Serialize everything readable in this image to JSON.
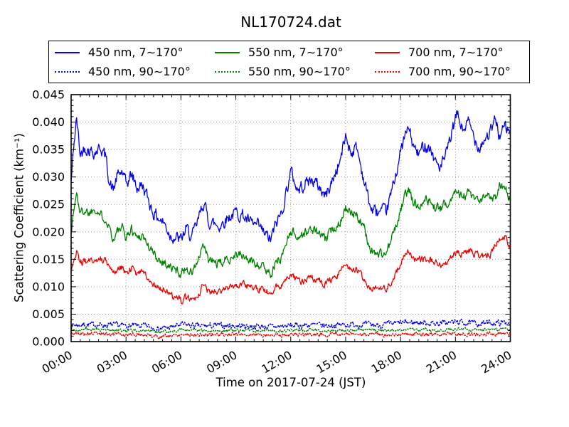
{
  "title": "NL170724.dat",
  "legend": {
    "entries": [
      {
        "label": "450 nm, 7∼170°",
        "color": "#0000ee",
        "style": "solid"
      },
      {
        "label": "550 nm, 7∼170°",
        "color": "#007f00",
        "style": "solid"
      },
      {
        "label": "700 nm, 7∼170°",
        "color": "#ee0000",
        "style": "solid"
      },
      {
        "label": "450 nm, 90∼170°",
        "color": "#0000ee",
        "style": "dotted"
      },
      {
        "label": "550 nm, 90∼170°",
        "color": "#007f00",
        "style": "dotted"
      },
      {
        "label": "700 nm, 90∼170°",
        "color": "#ee0000",
        "style": "dotted"
      }
    ]
  },
  "chart_data": {
    "type": "line",
    "title": "NL170724.dat",
    "xlabel": "Time on 2017-07-24 (JST)",
    "ylabel": "Scattering Coefficient (km⁻¹)",
    "xlim": [
      0,
      24
    ],
    "ylim": [
      0,
      0.045
    ],
    "grid": true,
    "grid_color": "#999999",
    "legend_position": "upper center outside",
    "ticks": {
      "x_major": 3,
      "x_minor": 0.5,
      "y_major": 0.005,
      "y_minor": 0.001
    },
    "xticks": [
      {
        "t": 0,
        "label": "00:00"
      },
      {
        "t": 3,
        "label": "03:00"
      },
      {
        "t": 6,
        "label": "06:00"
      },
      {
        "t": 9,
        "label": "09:00"
      },
      {
        "t": 12,
        "label": "12:00"
      },
      {
        "t": 15,
        "label": "15:00"
      },
      {
        "t": 18,
        "label": "18:00"
      },
      {
        "t": 21,
        "label": "21:00"
      },
      {
        "t": 24,
        "label": "24:00"
      }
    ],
    "yticks": [
      {
        "v": 0.0,
        "label": "0.000"
      },
      {
        "v": 0.005,
        "label": "0.005"
      },
      {
        "v": 0.01,
        "label": "0.010"
      },
      {
        "v": 0.015,
        "label": "0.015"
      },
      {
        "v": 0.02,
        "label": "0.020"
      },
      {
        "v": 0.025,
        "label": "0.025"
      },
      {
        "v": 0.03,
        "label": "0.030"
      },
      {
        "v": 0.035,
        "label": "0.035"
      },
      {
        "v": 0.04,
        "label": "0.040"
      },
      {
        "v": 0.045,
        "label": "0.045"
      }
    ],
    "series": [
      {
        "name": "450 nm, 7∼170°",
        "color": "#0000ee",
        "style": "solid",
        "noise": 0.001,
        "seed": 42,
        "x": [
          0,
          0.15,
          0.3,
          0.5,
          0.75,
          1,
          1.3,
          1.6,
          1.9,
          2.1,
          2.3,
          2.5,
          2.8,
          3,
          3.3,
          3.6,
          3.9,
          4.2,
          4.5,
          4.8,
          5.1,
          5.4,
          5.7,
          6,
          6.3,
          6.6,
          6.9,
          7.1,
          7.25,
          7.5,
          7.8,
          8.1,
          8.5,
          9,
          9.4,
          9.8,
          10.2,
          10.6,
          10.9,
          11.2,
          11.5,
          12,
          12.4,
          12.8,
          13.2,
          13.6,
          13.9,
          14.3,
          14.7,
          15,
          15.3,
          15.6,
          16,
          16.4,
          16.8,
          17.2,
          17.5,
          17.9,
          18.2,
          18.45,
          18.7,
          19,
          19.3,
          19.6,
          19.9,
          20.2,
          20.5,
          20.8,
          21.1,
          21.4,
          21.7,
          22,
          22.3,
          22.6,
          22.9,
          23.2,
          23.4,
          23.7,
          24
        ],
        "y": [
          0.029,
          0.036,
          0.0405,
          0.034,
          0.0355,
          0.035,
          0.0345,
          0.0355,
          0.0335,
          0.029,
          0.0275,
          0.03,
          0.031,
          0.0285,
          0.0305,
          0.028,
          0.0285,
          0.026,
          0.0235,
          0.0225,
          0.0215,
          0.0195,
          0.019,
          0.0185,
          0.0205,
          0.019,
          0.0215,
          0.024,
          0.0255,
          0.022,
          0.0215,
          0.021,
          0.0225,
          0.0235,
          0.023,
          0.0215,
          0.021,
          0.0195,
          0.0185,
          0.0215,
          0.0235,
          0.031,
          0.0275,
          0.029,
          0.0295,
          0.028,
          0.0265,
          0.0295,
          0.033,
          0.0375,
          0.0345,
          0.0355,
          0.0295,
          0.024,
          0.0235,
          0.0235,
          0.027,
          0.033,
          0.037,
          0.039,
          0.0355,
          0.034,
          0.036,
          0.0355,
          0.0328,
          0.0318,
          0.034,
          0.038,
          0.0415,
          0.0385,
          0.04,
          0.0375,
          0.0355,
          0.037,
          0.038,
          0.0405,
          0.0375,
          0.039,
          0.038
        ]
      },
      {
        "name": "550 nm, 7∼170°",
        "color": "#007f00",
        "style": "solid",
        "noise": 0.00075,
        "seed": 1337,
        "x": [
          0,
          0.15,
          0.3,
          0.5,
          0.75,
          1,
          1.3,
          1.6,
          1.9,
          2.1,
          2.3,
          2.5,
          2.8,
          3,
          3.3,
          3.6,
          3.9,
          4.2,
          4.5,
          4.8,
          5.1,
          5.4,
          5.7,
          6,
          6.3,
          6.6,
          6.9,
          7.1,
          7.25,
          7.5,
          7.8,
          8.1,
          8.5,
          9,
          9.4,
          9.8,
          10.2,
          10.6,
          10.9,
          11.2,
          11.5,
          12,
          12.4,
          12.8,
          13.2,
          13.6,
          13.9,
          14.3,
          14.7,
          15,
          15.3,
          15.6,
          16,
          16.4,
          16.8,
          17.2,
          17.5,
          17.9,
          18.2,
          18.45,
          18.7,
          19,
          19.3,
          19.6,
          19.9,
          20.2,
          20.5,
          20.8,
          21.1,
          21.4,
          21.7,
          22,
          22.3,
          22.6,
          22.9,
          23.2,
          23.4,
          23.7,
          24
        ],
        "y": [
          0.02,
          0.024,
          0.027,
          0.0235,
          0.024,
          0.0235,
          0.0245,
          0.023,
          0.0225,
          0.021,
          0.0185,
          0.02,
          0.0205,
          0.019,
          0.0205,
          0.019,
          0.0195,
          0.0175,
          0.016,
          0.015,
          0.0145,
          0.0135,
          0.013,
          0.0125,
          0.0135,
          0.0125,
          0.0145,
          0.016,
          0.0175,
          0.0148,
          0.0145,
          0.014,
          0.015,
          0.016,
          0.0155,
          0.0147,
          0.0143,
          0.0132,
          0.0125,
          0.0143,
          0.0155,
          0.0205,
          0.019,
          0.0198,
          0.0205,
          0.0195,
          0.0185,
          0.0205,
          0.022,
          0.0245,
          0.0228,
          0.0235,
          0.0205,
          0.0165,
          0.016,
          0.016,
          0.0185,
          0.0225,
          0.0262,
          0.0278,
          0.0252,
          0.0248,
          0.0262,
          0.0255,
          0.0243,
          0.0242,
          0.0252,
          0.0262,
          0.0282,
          0.0262,
          0.0272,
          0.0258,
          0.0252,
          0.0262,
          0.0267,
          0.0262,
          0.0288,
          0.0282,
          0.0256
        ]
      },
      {
        "name": "700 nm, 7∼170°",
        "color": "#ee0000",
        "style": "solid",
        "noise": 0.00055,
        "seed": 2024,
        "x": [
          0,
          0.15,
          0.3,
          0.5,
          0.75,
          1,
          1.3,
          1.6,
          1.9,
          2.1,
          2.3,
          2.5,
          2.8,
          3,
          3.3,
          3.6,
          3.9,
          4.2,
          4.5,
          4.8,
          5.1,
          5.4,
          5.7,
          6,
          6.3,
          6.6,
          6.9,
          7.1,
          7.25,
          7.5,
          7.8,
          8.1,
          8.5,
          9,
          9.4,
          9.8,
          10.2,
          10.6,
          10.9,
          11.2,
          11.5,
          12,
          12.4,
          12.8,
          13.2,
          13.6,
          13.9,
          14.3,
          14.7,
          15,
          15.3,
          15.6,
          16,
          16.4,
          16.8,
          17.2,
          17.5,
          17.9,
          18.2,
          18.45,
          18.7,
          19,
          19.3,
          19.6,
          19.9,
          20.2,
          20.5,
          20.8,
          21.1,
          21.4,
          21.7,
          22,
          22.3,
          22.6,
          22.9,
          23.2,
          23.4,
          23.7,
          24
        ],
        "y": [
          0.0125,
          0.0145,
          0.0165,
          0.0145,
          0.0145,
          0.015,
          0.0147,
          0.015,
          0.0145,
          0.014,
          0.0125,
          0.013,
          0.0135,
          0.0125,
          0.0135,
          0.0125,
          0.013,
          0.0118,
          0.0105,
          0.0098,
          0.0095,
          0.0085,
          0.008,
          0.0075,
          0.008,
          0.0075,
          0.0085,
          0.0095,
          0.0105,
          0.009,
          0.0092,
          0.009,
          0.0095,
          0.0102,
          0.0105,
          0.01,
          0.0098,
          0.0092,
          0.009,
          0.0098,
          0.0105,
          0.012,
          0.0108,
          0.0112,
          0.0115,
          0.011,
          0.0105,
          0.0115,
          0.0125,
          0.014,
          0.0128,
          0.0132,
          0.0115,
          0.0098,
          0.0095,
          0.0098,
          0.011,
          0.0135,
          0.0158,
          0.0165,
          0.0152,
          0.0148,
          0.0152,
          0.0149,
          0.0142,
          0.0138,
          0.0145,
          0.0152,
          0.0162,
          0.0158,
          0.0166,
          0.0161,
          0.0157,
          0.0155,
          0.0158,
          0.0178,
          0.0185,
          0.0193,
          0.0173
        ]
      },
      {
        "name": "450 nm, 90∼170°",
        "color": "#0000ee",
        "style": "dotted",
        "noise": 0.00045,
        "seed": 7,
        "x": [
          0,
          1,
          2,
          3,
          4,
          4.8,
          5.5,
          6,
          7,
          8,
          9,
          10,
          11,
          12,
          13,
          14,
          15,
          16,
          17,
          18,
          19,
          20,
          21,
          22,
          23,
          24
        ],
        "y": [
          0.003,
          0.0031,
          0.003,
          0.0029,
          0.0028,
          0.0024,
          0.0026,
          0.0031,
          0.0028,
          0.0029,
          0.0029,
          0.0028,
          0.0027,
          0.0029,
          0.003,
          0.0029,
          0.0031,
          0.0031,
          0.003,
          0.0034,
          0.0035,
          0.0033,
          0.0036,
          0.0033,
          0.0034,
          0.0035
        ]
      },
      {
        "name": "550 nm, 90∼170°",
        "color": "#007f00",
        "style": "dotted",
        "noise": 0.00022,
        "seed": 99,
        "x": [
          0,
          1,
          2,
          3,
          4,
          4.8,
          5.5,
          6,
          7,
          8,
          9,
          10,
          11,
          12,
          13,
          14,
          15,
          16,
          17,
          18,
          19,
          20,
          21,
          22,
          23,
          24
        ],
        "y": [
          0.0021,
          0.0022,
          0.0021,
          0.002,
          0.002,
          0.0017,
          0.0019,
          0.0022,
          0.002,
          0.002,
          0.0021,
          0.002,
          0.0019,
          0.002,
          0.0021,
          0.002,
          0.0021,
          0.0021,
          0.002,
          0.0022,
          0.0022,
          0.0021,
          0.0023,
          0.0021,
          0.0022,
          0.0022
        ]
      },
      {
        "name": "700 nm, 90∼170°",
        "color": "#ee0000",
        "style": "dotted",
        "noise": 0.0003,
        "seed": 5,
        "x": [
          0,
          1,
          2,
          3,
          4,
          4.8,
          5.5,
          6,
          7,
          8,
          9,
          10,
          11,
          12,
          13,
          14,
          15,
          16,
          17,
          18,
          19,
          20,
          21,
          22,
          23,
          24
        ],
        "y": [
          0.0014,
          0.0015,
          0.0014,
          0.0013,
          0.0013,
          0.0009,
          0.0011,
          0.0014,
          0.0012,
          0.0013,
          0.0013,
          0.0013,
          0.0012,
          0.0012,
          0.0013,
          0.0013,
          0.0014,
          0.0013,
          0.0012,
          0.0014,
          0.0014,
          0.0013,
          0.0015,
          0.0013,
          0.0014,
          0.0014
        ]
      }
    ]
  }
}
